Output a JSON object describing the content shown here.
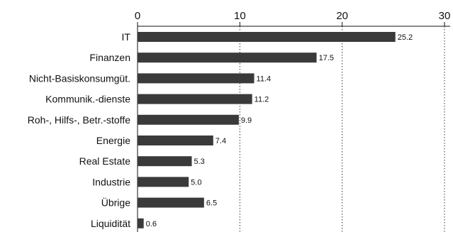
{
  "chart_data": {
    "type": "bar",
    "orientation": "horizontal",
    "categories": [
      "IT",
      "Finanzen",
      "Nicht-Basiskonsumgüt.",
      "Kommunik.-dienste",
      "Roh-, Hilfs-, Betr.-stoffe",
      "Energie",
      "Real Estate",
      "Industrie",
      "Übrige",
      "Liquidität"
    ],
    "values": [
      25.2,
      17.5,
      11.4,
      11.2,
      9.9,
      7.4,
      5.3,
      5.0,
      6.5,
      0.6
    ],
    "value_labels": [
      "25.2",
      "17.5",
      "11.4",
      "11.2",
      "9.9",
      "7.4",
      "5.3",
      "5.0",
      "6.5",
      "0.6"
    ],
    "xlim": [
      0,
      30
    ],
    "xticks": [
      0,
      10,
      20,
      30
    ],
    "xtick_labels": [
      "0",
      "10",
      "20",
      "30"
    ],
    "axis_position": "top",
    "grid": "vertical dotted",
    "colors": {
      "bar": "#3a3a3a",
      "axis": "#111111",
      "grid": "#333333",
      "text": "#111111"
    }
  }
}
